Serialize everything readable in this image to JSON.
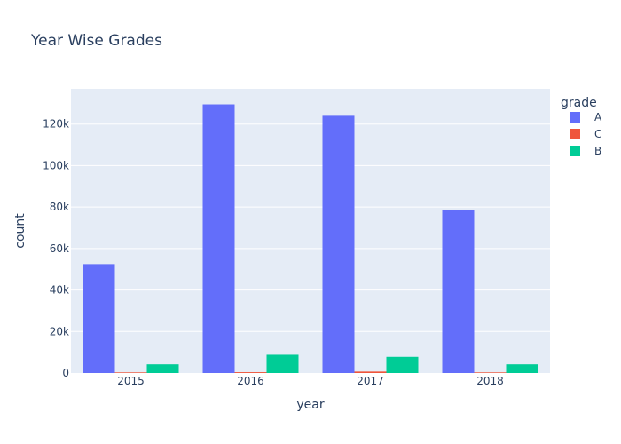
{
  "chart_data": {
    "type": "bar",
    "title": "Year Wise Grades",
    "xlabel": "year",
    "ylabel": "count",
    "categories": [
      "2015",
      "2016",
      "2017",
      "2018"
    ],
    "ylim": [
      0,
      137000
    ],
    "yticks": [
      0,
      20000,
      40000,
      60000,
      80000,
      100000,
      120000
    ],
    "ytick_labels": [
      "0",
      "20k",
      "40k",
      "60k",
      "80k",
      "100k",
      "120k"
    ],
    "grid": true,
    "legend": {
      "title": "grade",
      "position": "top-right"
    },
    "series": [
      {
        "name": "A",
        "color": "#636efa",
        "values": [
          52500,
          129500,
          124000,
          78500
        ]
      },
      {
        "name": "C",
        "color": "#ef553b",
        "values": [
          300,
          400,
          700,
          300
        ]
      },
      {
        "name": "B",
        "color": "#00cc96",
        "values": [
          4200,
          8800,
          7800,
          4200
        ]
      }
    ]
  }
}
